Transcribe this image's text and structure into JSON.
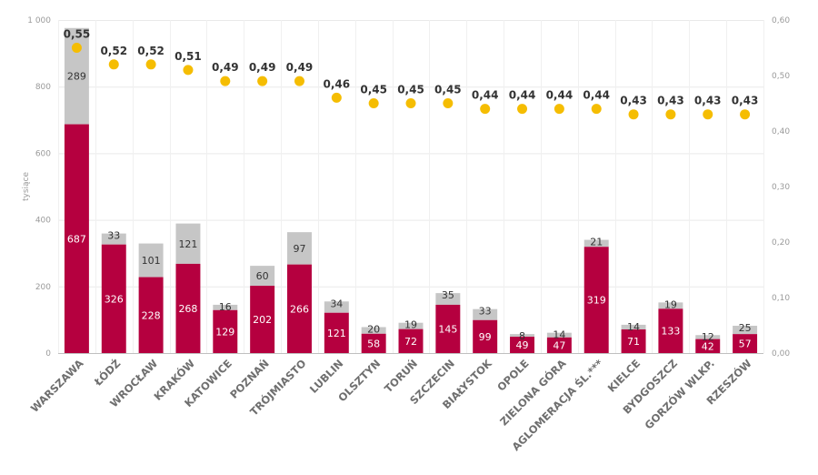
{
  "chart_data": {
    "type": "bar",
    "stacked": true,
    "title": "",
    "xlabel": "",
    "ylabel": "tysiące",
    "ylim": [
      0,
      1000
    ],
    "y_ticks": [
      "0",
      "200",
      "400",
      "600",
      "800",
      "1 000"
    ],
    "y_tick_values": [
      0,
      200,
      400,
      600,
      800,
      1000
    ],
    "y2lim": [
      0,
      0.6
    ],
    "y2_ticks": [
      "0,00",
      "0,10",
      "0,20",
      "0,30",
      "0,40",
      "0,50",
      "0,60"
    ],
    "y2_tick_values": [
      0,
      0.1,
      0.2,
      0.3,
      0.4,
      0.5,
      0.6
    ],
    "grid": true,
    "categories": [
      "WARSZAWA",
      "ŁÓDŹ",
      "WROCŁAW",
      "KRAKÓW",
      "KATOWICE",
      "POZNAŃ",
      "TRÓJMIASTO",
      "LUBLIN",
      "OLSZTYN",
      "TORUŃ",
      "SZCZECIN",
      "BIAŁYSTOK",
      "OPOLE",
      "ZIELONA GÓRA",
      "AGLOMERACJA  ŚL.***",
      "KIELCE",
      "BYDGOSZCZ",
      "GORZÓW  WLKP.",
      "RZESZÓW"
    ],
    "series": [
      {
        "name": "segment-1",
        "type": "bar",
        "axis": "left",
        "color": "#b5003f",
        "values": [
          687,
          326,
          228,
          268,
          129,
          202,
          266,
          121,
          58,
          72,
          145,
          99,
          49,
          47,
          319,
          71,
          133,
          42,
          57
        ]
      },
      {
        "name": "segment-2",
        "type": "bar",
        "axis": "left",
        "color": "#c6c6c6",
        "values": [
          289,
          33,
          101,
          121,
          16,
          60,
          97,
          34,
          20,
          19,
          35,
          33,
          8,
          14,
          21,
          14,
          19,
          12,
          25
        ]
      },
      {
        "name": "ratio",
        "type": "scatter",
        "axis": "right",
        "color": "#f5bd02",
        "values": [
          0.55,
          0.52,
          0.52,
          0.51,
          0.49,
          0.49,
          0.49,
          0.46,
          0.45,
          0.45,
          0.45,
          0.44,
          0.44,
          0.44,
          0.44,
          0.43,
          0.43,
          0.43,
          0.43
        ],
        "labels": [
          "0,55",
          "0,52",
          "0,52",
          "0,51",
          "0,49",
          "0,49",
          "0,49",
          "0,46",
          "0,45",
          "0,45",
          "0,45",
          "0,44",
          "0,44",
          "0,44",
          "0,44",
          "0,43",
          "0,43",
          "0,43",
          "0,43"
        ]
      }
    ],
    "legend": "none"
  }
}
